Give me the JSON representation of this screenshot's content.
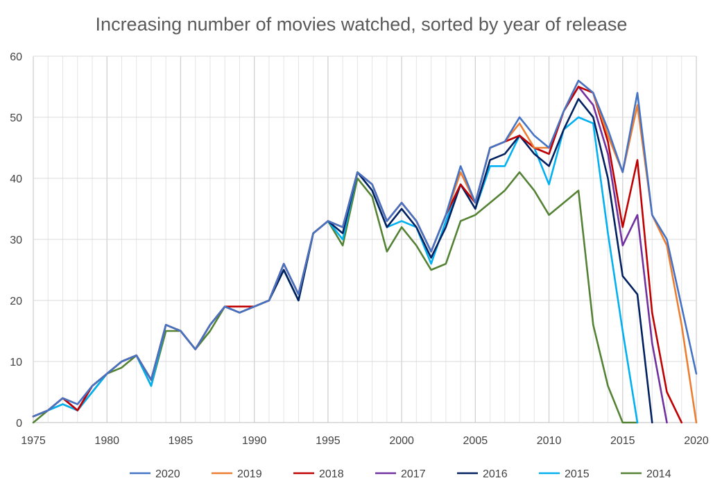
{
  "chart_data": {
    "type": "line",
    "title": "Increasing number of movies watched, sorted by year of release",
    "xlabel": "",
    "ylabel": "",
    "xlim": [
      1975,
      2020
    ],
    "ylim": [
      0,
      60
    ],
    "x_ticks": [
      "1975",
      "1980",
      "1985",
      "1990",
      "1995",
      "2000",
      "2005",
      "2010",
      "2015",
      "2020"
    ],
    "y_ticks": [
      "0",
      "10",
      "20",
      "30",
      "40",
      "50",
      "60"
    ],
    "grid": "both",
    "legend_position": "bottom",
    "x": [
      1975,
      1976,
      1977,
      1978,
      1979,
      1980,
      1981,
      1982,
      1983,
      1984,
      1985,
      1986,
      1987,
      1988,
      1989,
      1990,
      1991,
      1992,
      1993,
      1994,
      1995,
      1996,
      1997,
      1998,
      1999,
      2000,
      2001,
      2002,
      2003,
      2004,
      2005,
      2006,
      2007,
      2008,
      2009,
      2010,
      2011,
      2012,
      2013,
      2014,
      2015,
      2016,
      2017,
      2018,
      2019,
      2020
    ],
    "series": [
      {
        "name": "2020",
        "color": "#4472C4",
        "values": [
          1,
          2,
          4,
          3,
          6,
          8,
          10,
          11,
          7,
          16,
          15,
          12,
          16,
          19,
          18,
          19,
          20,
          26,
          21,
          31,
          33,
          32,
          41,
          39,
          33,
          36,
          33,
          28,
          34,
          42,
          36,
          45,
          46,
          50,
          47,
          45,
          51,
          56,
          54,
          48,
          41,
          54,
          34,
          30,
          19,
          8
        ]
      },
      {
        "name": "2019",
        "color": "#ED7D31",
        "values": [
          1,
          2,
          4,
          3,
          6,
          8,
          10,
          11,
          7,
          16,
          15,
          12,
          16,
          19,
          18,
          19,
          20,
          26,
          21,
          31,
          33,
          32,
          41,
          39,
          33,
          36,
          33,
          28,
          34,
          41,
          36,
          45,
          46,
          49,
          45,
          45,
          51,
          56,
          54,
          47,
          41,
          52,
          34,
          29,
          16,
          0
        ]
      },
      {
        "name": "2018",
        "color": "#C00000",
        "values": [
          1,
          2,
          4,
          2,
          6,
          8,
          10,
          11,
          7,
          16,
          15,
          12,
          16,
          19,
          19,
          19,
          20,
          26,
          21,
          31,
          33,
          32,
          41,
          39,
          33,
          36,
          33,
          28,
          34,
          39,
          36,
          45,
          46,
          47,
          45,
          44,
          51,
          55,
          54,
          46,
          32,
          43,
          18,
          5,
          0,
          null
        ]
      },
      {
        "name": "2017",
        "color": "#7030A0",
        "values": [
          1,
          2,
          4,
          2,
          6,
          8,
          10,
          11,
          7,
          16,
          15,
          12,
          16,
          19,
          18,
          19,
          20,
          26,
          21,
          31,
          33,
          32,
          41,
          39,
          33,
          36,
          33,
          28,
          34,
          39,
          36,
          45,
          46,
          47,
          45,
          44,
          51,
          55,
          52,
          44,
          29,
          34,
          13,
          0,
          null,
          null
        ]
      },
      {
        "name": "2016",
        "color": "#002060",
        "values": [
          1,
          2,
          4,
          2,
          6,
          8,
          10,
          11,
          7,
          16,
          15,
          12,
          16,
          19,
          18,
          19,
          20,
          25,
          20,
          31,
          33,
          31,
          41,
          38,
          32,
          35,
          32,
          27,
          32,
          39,
          35,
          43,
          44,
          47,
          44,
          42,
          48,
          53,
          50,
          40,
          24,
          21,
          0,
          null,
          null,
          null
        ]
      },
      {
        "name": "2015",
        "color": "#00B0F0",
        "values": [
          1,
          2,
          3,
          2,
          5,
          8,
          10,
          11,
          6,
          16,
          15,
          12,
          16,
          19,
          18,
          19,
          20,
          25,
          20,
          31,
          33,
          30,
          41,
          38,
          32,
          33,
          32,
          26,
          33,
          39,
          35,
          42,
          42,
          47,
          45,
          39,
          48,
          50,
          49,
          31,
          15,
          0,
          null,
          null,
          null,
          null
        ]
      },
      {
        "name": "2014",
        "color": "#548235",
        "values": [
          0,
          2,
          3,
          2,
          5,
          8,
          9,
          11,
          6,
          15,
          15,
          12,
          15,
          19,
          18,
          19,
          20,
          25,
          20,
          31,
          33,
          29,
          40,
          37,
          28,
          32,
          29,
          25,
          26,
          33,
          34,
          36,
          38,
          41,
          38,
          34,
          36,
          38,
          16,
          6,
          0,
          0,
          null,
          null,
          null,
          null
        ]
      }
    ]
  }
}
